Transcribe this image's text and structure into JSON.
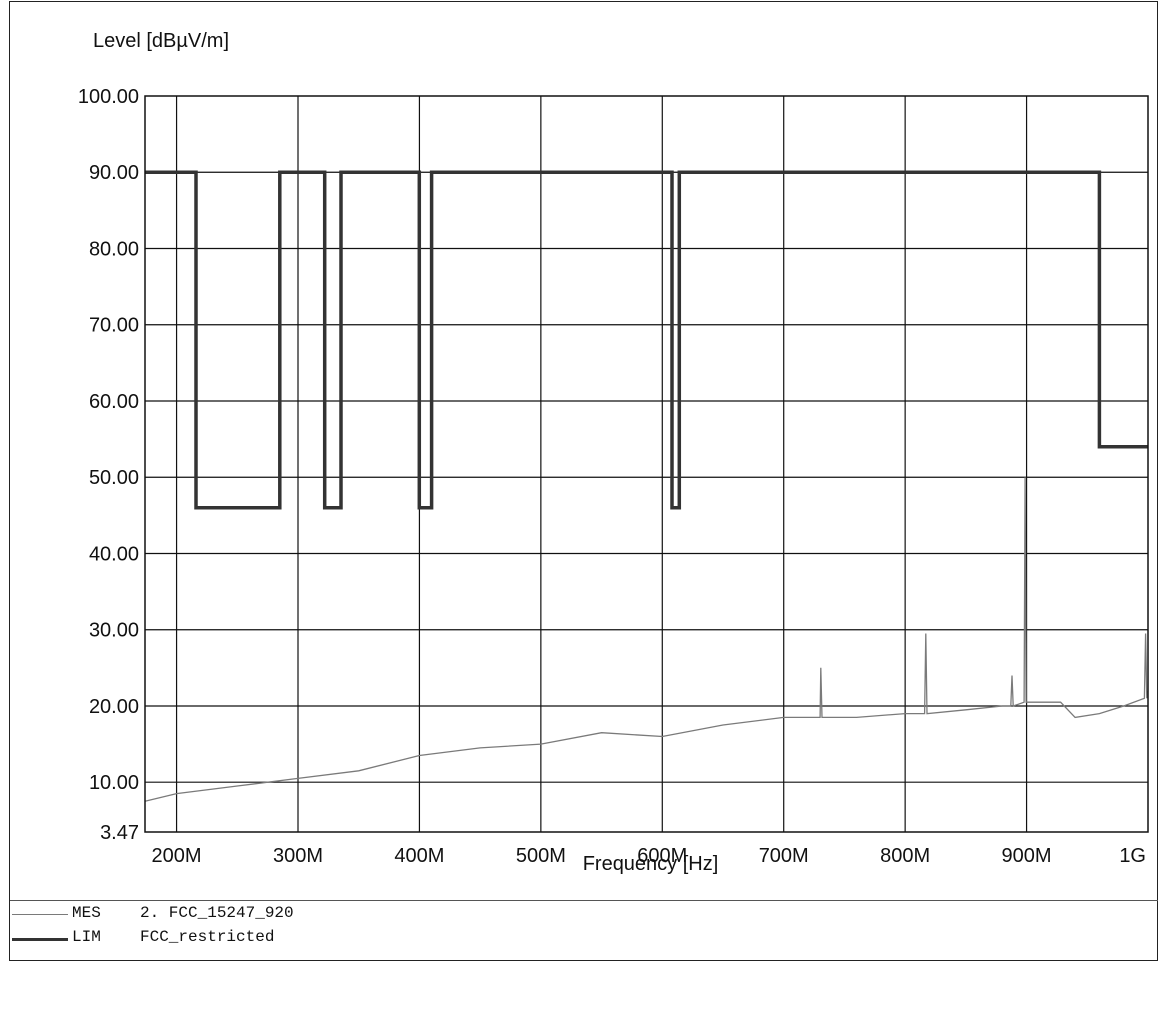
{
  "chart_data": {
    "type": "line",
    "ylabel": "Level [dBµV/m]",
    "xlabel": "Frequency [Hz]",
    "ylim": [
      3.47,
      100
    ],
    "xlim": [
      174000000,
      1000000000
    ],
    "y_ticks": [
      {
        "value": 100,
        "label": "100.00"
      },
      {
        "value": 90,
        "label": "90.00"
      },
      {
        "value": 80,
        "label": "80.00"
      },
      {
        "value": 70,
        "label": "70.00"
      },
      {
        "value": 60,
        "label": "60.00"
      },
      {
        "value": 50,
        "label": "50.00"
      },
      {
        "value": 40,
        "label": "40.00"
      },
      {
        "value": 30,
        "label": "30.00"
      },
      {
        "value": 20,
        "label": "20.00"
      },
      {
        "value": 10,
        "label": "10.00"
      },
      {
        "value": 3.47,
        "label": "3.47"
      }
    ],
    "x_ticks": [
      {
        "value": 200000000,
        "label": "200M"
      },
      {
        "value": 300000000,
        "label": "300M"
      },
      {
        "value": 400000000,
        "label": "400M"
      },
      {
        "value": 500000000,
        "label": "500M"
      },
      {
        "value": 600000000,
        "label": "600M"
      },
      {
        "value": 700000000,
        "label": "700M"
      },
      {
        "value": 800000000,
        "label": "800M"
      },
      {
        "value": 900000000,
        "label": "900M"
      },
      {
        "value": 1000000000,
        "label": "1G"
      }
    ],
    "grid": true,
    "legend_position": "bottom-left",
    "series": [
      {
        "name": "FCC_restricted",
        "code": "LIM",
        "color": "#333333",
        "x": [
          174000000,
          216000000,
          216000000,
          285000000,
          285000000,
          322000000,
          322000000,
          335400000,
          335400000,
          399900000,
          399900000,
          410000000,
          410000000,
          608000000,
          608000000,
          614000000,
          614000000,
          960000000,
          960000000,
          1000000000
        ],
        "y": [
          90,
          90,
          46,
          46,
          90,
          90,
          46,
          46,
          90,
          90,
          46,
          46,
          90,
          90,
          46,
          46,
          90,
          90,
          54,
          54
        ]
      },
      {
        "name": "2. FCC_15247_920",
        "code": "MES",
        "color": "#7a7a7a",
        "x": [
          174000000,
          200000000,
          250000000,
          300000000,
          350000000,
          400000000,
          450000000,
          500000000,
          550000000,
          600000000,
          650000000,
          700000000,
          730000000,
          730500000,
          731500000,
          760000000,
          800000000,
          816000000,
          817000000,
          818000000,
          850000000,
          880000000,
          887000000,
          888000000,
          889000000,
          898000000,
          898800000,
          899600000,
          902000000,
          928000000,
          940000000,
          960000000,
          980000000,
          997000000,
          998000000,
          999000000,
          1000000000
        ],
        "y": [
          7.5,
          8.5,
          9.5,
          10.5,
          11.5,
          13.5,
          14.5,
          15,
          16.5,
          16,
          17.5,
          18.5,
          18.5,
          25,
          18.5,
          18.5,
          19,
          19,
          29.5,
          19,
          19.5,
          20,
          20,
          24,
          20,
          20.5,
          50,
          20.5,
          20.5,
          20.5,
          18.5,
          19,
          20,
          21,
          29.5,
          21,
          22
        ]
      }
    ]
  }
}
